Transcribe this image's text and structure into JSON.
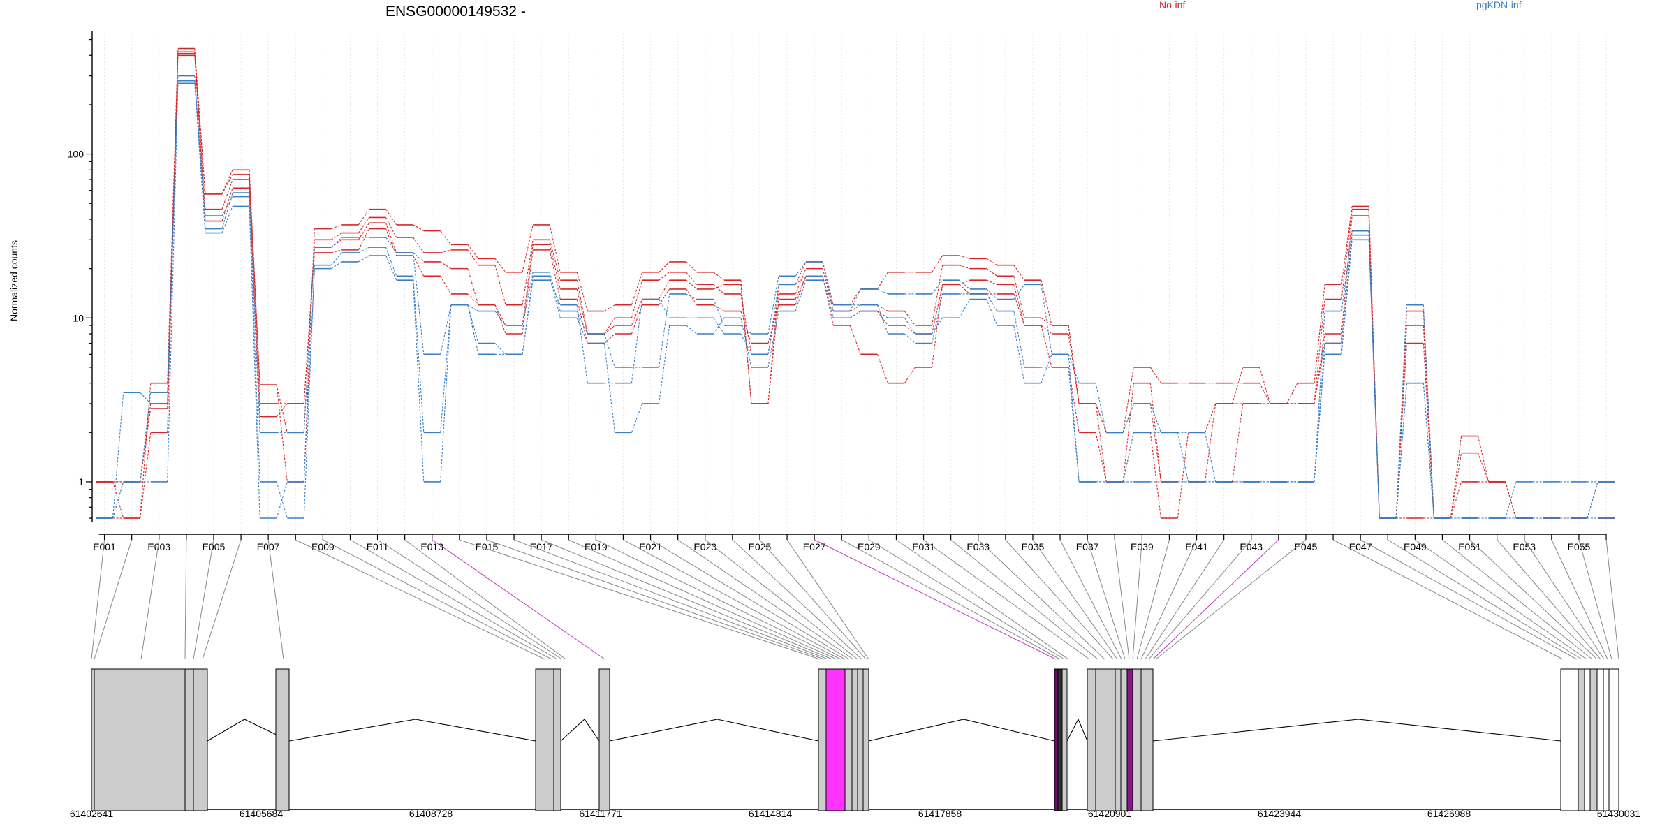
{
  "chart_data": {
    "type": "line",
    "title": "ENSG00000149532 -",
    "ylabel": "Normalized counts",
    "yscale": "log",
    "ylim": [
      0.6,
      560
    ],
    "ytick_labels": [
      "1",
      "10",
      "100"
    ],
    "yticks": [
      1,
      10,
      100
    ],
    "legend": [
      {
        "name": "No-inf",
        "color": "#d62728"
      },
      {
        "name": "pgKDN-inf",
        "color": "#3a7fc4"
      }
    ],
    "exons": [
      "E001",
      "E002",
      "E003",
      "E004",
      "E005",
      "E006",
      "E007",
      "E008",
      "E009",
      "E010",
      "E011",
      "E012",
      "E013",
      "E014",
      "E015",
      "E016",
      "E017",
      "E018",
      "E019",
      "E020",
      "E021",
      "E022",
      "E023",
      "E024",
      "E025",
      "E026",
      "E027",
      "E028",
      "E029",
      "E030",
      "E031",
      "E032",
      "E033",
      "E034",
      "E035",
      "E036",
      "E037",
      "E038",
      "E039",
      "E040",
      "E041",
      "E042",
      "E043",
      "E044",
      "E045",
      "E046",
      "E047",
      "E048",
      "E049",
      "E050",
      "E051",
      "E052",
      "E053",
      "E054",
      "E055",
      "E056"
    ],
    "exon_tick_labels": [
      "E001",
      "E003",
      "E005",
      "E007",
      "E009",
      "E011",
      "E013",
      "E015",
      "E017",
      "E019",
      "E021",
      "E023",
      "E025",
      "E027",
      "E029",
      "E031",
      "E033",
      "E035",
      "E037",
      "E039",
      "E041",
      "E043",
      "E045",
      "E047",
      "E049",
      "E051",
      "E053",
      "E055"
    ],
    "series": [
      {
        "group": "No-inf",
        "color": "#d62728",
        "values": [
          1,
          0.6,
          4,
          440,
          57,
          80,
          3.9,
          1,
          35,
          37,
          46,
          37,
          34,
          28,
          23,
          19,
          37,
          19,
          11,
          12,
          19,
          22,
          19,
          17,
          3,
          16,
          22,
          12,
          15,
          19,
          19,
          24,
          23,
          21,
          17,
          9,
          3,
          2,
          5,
          4,
          4,
          4,
          4,
          3,
          4,
          16,
          48,
          0.6,
          0.6,
          0.6,
          0.6,
          0.6,
          0.6,
          0.6,
          0.6,
          0.6
        ]
      },
      {
        "group": "No-inf",
        "color": "#d62728",
        "values": [
          1,
          1,
          3,
          420,
          57,
          75,
          3.9,
          2,
          30,
          33,
          41,
          31,
          25,
          26,
          21,
          12,
          30,
          17,
          8,
          10,
          17,
          19,
          16,
          14,
          6,
          14,
          20,
          11,
          12,
          11,
          9,
          21,
          20,
          18,
          10,
          9,
          3,
          1,
          4,
          1,
          1,
          1,
          3,
          3,
          3,
          13,
          46,
          0.6,
          11,
          0.6,
          1.9,
          1,
          0.6,
          0.6,
          0.6,
          1
        ]
      },
      {
        "group": "No-inf",
        "color": "#d62728",
        "values": [
          0.6,
          0.6,
          2,
          410,
          46,
          70,
          3,
          3,
          27,
          30,
          38,
          25,
          22,
          20,
          12,
          9,
          28,
          15,
          8,
          9,
          13,
          17,
          15,
          16,
          3,
          13,
          18,
          10,
          11,
          9,
          8,
          16,
          17,
          16,
          9,
          8,
          3,
          2,
          3,
          1,
          1,
          3,
          5,
          3,
          3,
          8,
          42,
          0.6,
          9,
          0.6,
          1.5,
          1,
          0.6,
          0.6,
          0.6,
          0.6
        ]
      },
      {
        "group": "No-inf",
        "color": "#d62728",
        "values": [
          1,
          1,
          2.8,
          400,
          39,
          62,
          2.5,
          3,
          25,
          26,
          35,
          24,
          18,
          14,
          12,
          8,
          26,
          13,
          7,
          8,
          12,
          15,
          12,
          11,
          7,
          12,
          18,
          9,
          6,
          4,
          5,
          16,
          14,
          14,
          9,
          5,
          2,
          1,
          2,
          0.6,
          2,
          3,
          3,
          3,
          3,
          7,
          34,
          0.6,
          7,
          0.6,
          1,
          1,
          0.6,
          0.6,
          0.6,
          0.6
        ]
      },
      {
        "group": "pgKDN-inf",
        "color": "#3a7fc4",
        "values": [
          0.6,
          1,
          3.5,
          300,
          35,
          58,
          2,
          2,
          27,
          31,
          31,
          25,
          6,
          12,
          11,
          9,
          19,
          11,
          8,
          5,
          5,
          14,
          13,
          9,
          8,
          18,
          22,
          11,
          15,
          14,
          14,
          17,
          15,
          13,
          16,
          6,
          4,
          2,
          3,
          2,
          2,
          1,
          1,
          1,
          1,
          11,
          34,
          0.6,
          12,
          0.6,
          0.6,
          0.6,
          1,
          1,
          1,
          1
        ]
      },
      {
        "group": "pgKDN-inf",
        "color": "#3a7fc4",
        "values": [
          0.6,
          3.5,
          3,
          280,
          42,
          55,
          1,
          0.6,
          21,
          25,
          27,
          18,
          2,
          12,
          6,
          6,
          18,
          10,
          7,
          2,
          3,
          9,
          8,
          10,
          5,
          11,
          17,
          12,
          12,
          8,
          7,
          14,
          14,
          11,
          5,
          5,
          1,
          1,
          2,
          2,
          1,
          1,
          1,
          1,
          1,
          7,
          32,
          0.6,
          4,
          0.6,
          0.6,
          0.6,
          0.6,
          0.6,
          0.6,
          1
        ]
      },
      {
        "group": "pgKDN-inf",
        "color": "#3a7fc4",
        "values": [
          0.6,
          1,
          1,
          270,
          33,
          48,
          0.6,
          1,
          20,
          22,
          24,
          17,
          1,
          12,
          7,
          6,
          17,
          12,
          4,
          4,
          13,
          10,
          10,
          8,
          6,
          16,
          18,
          10,
          11,
          10,
          8,
          10,
          13,
          9,
          4,
          6,
          1,
          1,
          1,
          1,
          1,
          1,
          1,
          1,
          1,
          6,
          30,
          0.6,
          4,
          0.6,
          0.6,
          0.6,
          0.6,
          0.6,
          0.6,
          0.6
        ]
      }
    ],
    "genome_tick_labels": [
      "61402641",
      "61405684",
      "61408728",
      "61411771",
      "61414814",
      "61417858",
      "61420901",
      "61423944",
      "61426988",
      "61430031"
    ]
  }
}
